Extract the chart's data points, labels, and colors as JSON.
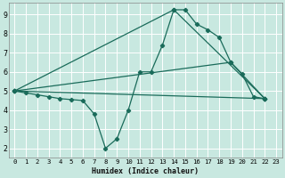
{
  "bg_color": "#c8e8e0",
  "grid_color": "#ffffff",
  "line_color": "#1a6b5a",
  "series1_x": [
    0,
    1,
    2,
    3,
    4,
    5,
    6,
    7,
    8,
    9,
    10,
    11,
    12,
    13,
    14,
    15,
    16,
    17,
    18,
    19,
    20,
    21,
    22
  ],
  "series1_y": [
    5.0,
    4.9,
    4.8,
    4.7,
    4.6,
    4.55,
    4.5,
    3.8,
    2.0,
    2.5,
    4.0,
    6.0,
    6.0,
    7.4,
    9.25,
    9.25,
    8.5,
    8.2,
    7.8,
    6.5,
    5.9,
    4.7,
    4.6
  ],
  "series2_x": [
    0,
    22
  ],
  "series2_y": [
    5.0,
    4.6
  ],
  "series3_x": [
    0,
    14,
    22
  ],
  "series3_y": [
    5.0,
    9.25,
    4.6
  ],
  "series4_x": [
    0,
    19,
    22
  ],
  "series4_y": [
    5.0,
    6.5,
    4.6
  ],
  "xlabel": "Humidex (Indice chaleur)",
  "xlim_min": -0.5,
  "xlim_max": 23.5,
  "ylim_min": 1.5,
  "ylim_max": 9.6,
  "xticks": [
    0,
    1,
    2,
    3,
    4,
    5,
    6,
    7,
    8,
    9,
    10,
    11,
    12,
    13,
    14,
    15,
    16,
    17,
    18,
    19,
    20,
    21,
    22,
    23
  ],
  "yticks": [
    2,
    3,
    4,
    5,
    6,
    7,
    8,
    9
  ],
  "xlabel_fontsize": 6.0,
  "tick_fontsize": 5.2
}
